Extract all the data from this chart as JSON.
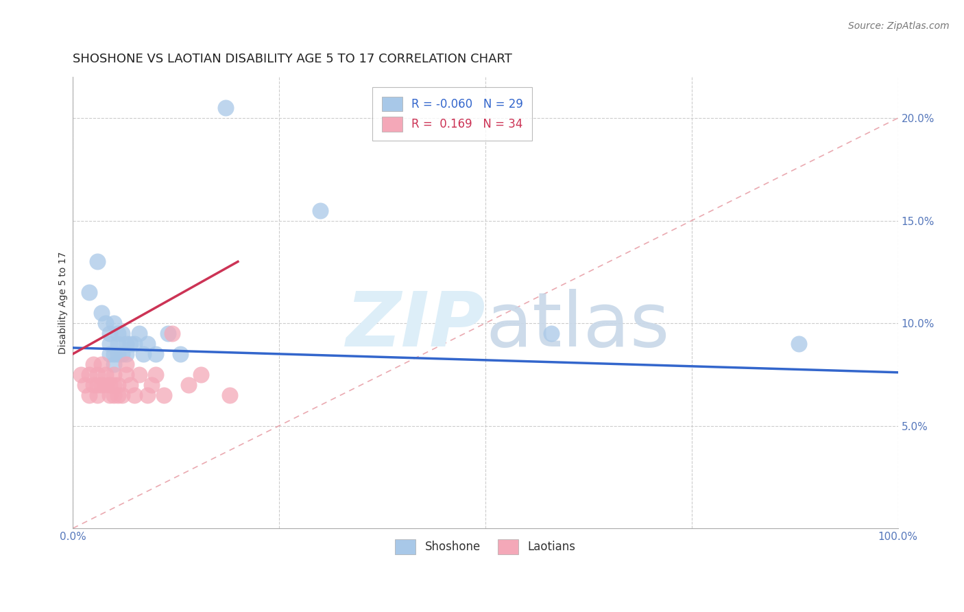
{
  "title": "SHOSHONE VS LAOTIAN DISABILITY AGE 5 TO 17 CORRELATION CHART",
  "source": "Source: ZipAtlas.com",
  "ylabel": "Disability Age 5 to 17",
  "xlim": [
    0.0,
    1.0
  ],
  "ylim": [
    0.0,
    0.22
  ],
  "yticks": [
    0.05,
    0.1,
    0.15,
    0.2
  ],
  "ytick_labels": [
    "5.0%",
    "10.0%",
    "15.0%",
    "20.0%"
  ],
  "xticks": [
    0.0,
    0.25,
    0.5,
    0.75,
    1.0
  ],
  "xtick_labels": [
    "0.0%",
    "",
    "",
    "",
    "100.0%"
  ],
  "shoshone_R": -0.06,
  "shoshone_N": 29,
  "laotian_R": 0.169,
  "laotian_N": 34,
  "shoshone_color": "#a8c8e8",
  "laotian_color": "#f4a8b8",
  "shoshone_line_color": "#3366cc",
  "laotian_line_color": "#cc3355",
  "diagonal_color": "#e8a0a8",
  "background_color": "#ffffff",
  "watermark_color": "#ddeef8",
  "shoshone_x": [
    0.02,
    0.03,
    0.035,
    0.04,
    0.045,
    0.045,
    0.045,
    0.05,
    0.05,
    0.05,
    0.055,
    0.055,
    0.055,
    0.06,
    0.06,
    0.065,
    0.065,
    0.07,
    0.075,
    0.08,
    0.085,
    0.09,
    0.1,
    0.115,
    0.13,
    0.185,
    0.3,
    0.58,
    0.88
  ],
  "shoshone_y": [
    0.115,
    0.13,
    0.105,
    0.1,
    0.085,
    0.09,
    0.095,
    0.08,
    0.085,
    0.1,
    0.085,
    0.09,
    0.095,
    0.085,
    0.095,
    0.085,
    0.09,
    0.09,
    0.09,
    0.095,
    0.085,
    0.09,
    0.085,
    0.095,
    0.085,
    0.205,
    0.155,
    0.095,
    0.09
  ],
  "laotian_x": [
    0.01,
    0.015,
    0.02,
    0.02,
    0.025,
    0.025,
    0.03,
    0.03,
    0.03,
    0.035,
    0.035,
    0.04,
    0.04,
    0.045,
    0.045,
    0.05,
    0.05,
    0.05,
    0.055,
    0.055,
    0.06,
    0.065,
    0.065,
    0.07,
    0.075,
    0.08,
    0.09,
    0.095,
    0.1,
    0.11,
    0.12,
    0.14,
    0.155,
    0.19
  ],
  "laotian_y": [
    0.075,
    0.07,
    0.065,
    0.075,
    0.07,
    0.08,
    0.065,
    0.07,
    0.075,
    0.07,
    0.08,
    0.07,
    0.075,
    0.065,
    0.07,
    0.065,
    0.07,
    0.075,
    0.065,
    0.07,
    0.065,
    0.075,
    0.08,
    0.07,
    0.065,
    0.075,
    0.065,
    0.07,
    0.075,
    0.065,
    0.095,
    0.07,
    0.075,
    0.065
  ],
  "shoshone_line_x0": 0.0,
  "shoshone_line_y0": 0.088,
  "shoshone_line_x1": 1.0,
  "shoshone_line_y1": 0.076,
  "laotian_line_x0": 0.0,
  "laotian_line_y0": 0.085,
  "laotian_line_x1": 0.2,
  "laotian_line_y1": 0.13,
  "title_fontsize": 13,
  "axis_label_fontsize": 10,
  "tick_fontsize": 11,
  "legend_fontsize": 12,
  "source_fontsize": 10
}
